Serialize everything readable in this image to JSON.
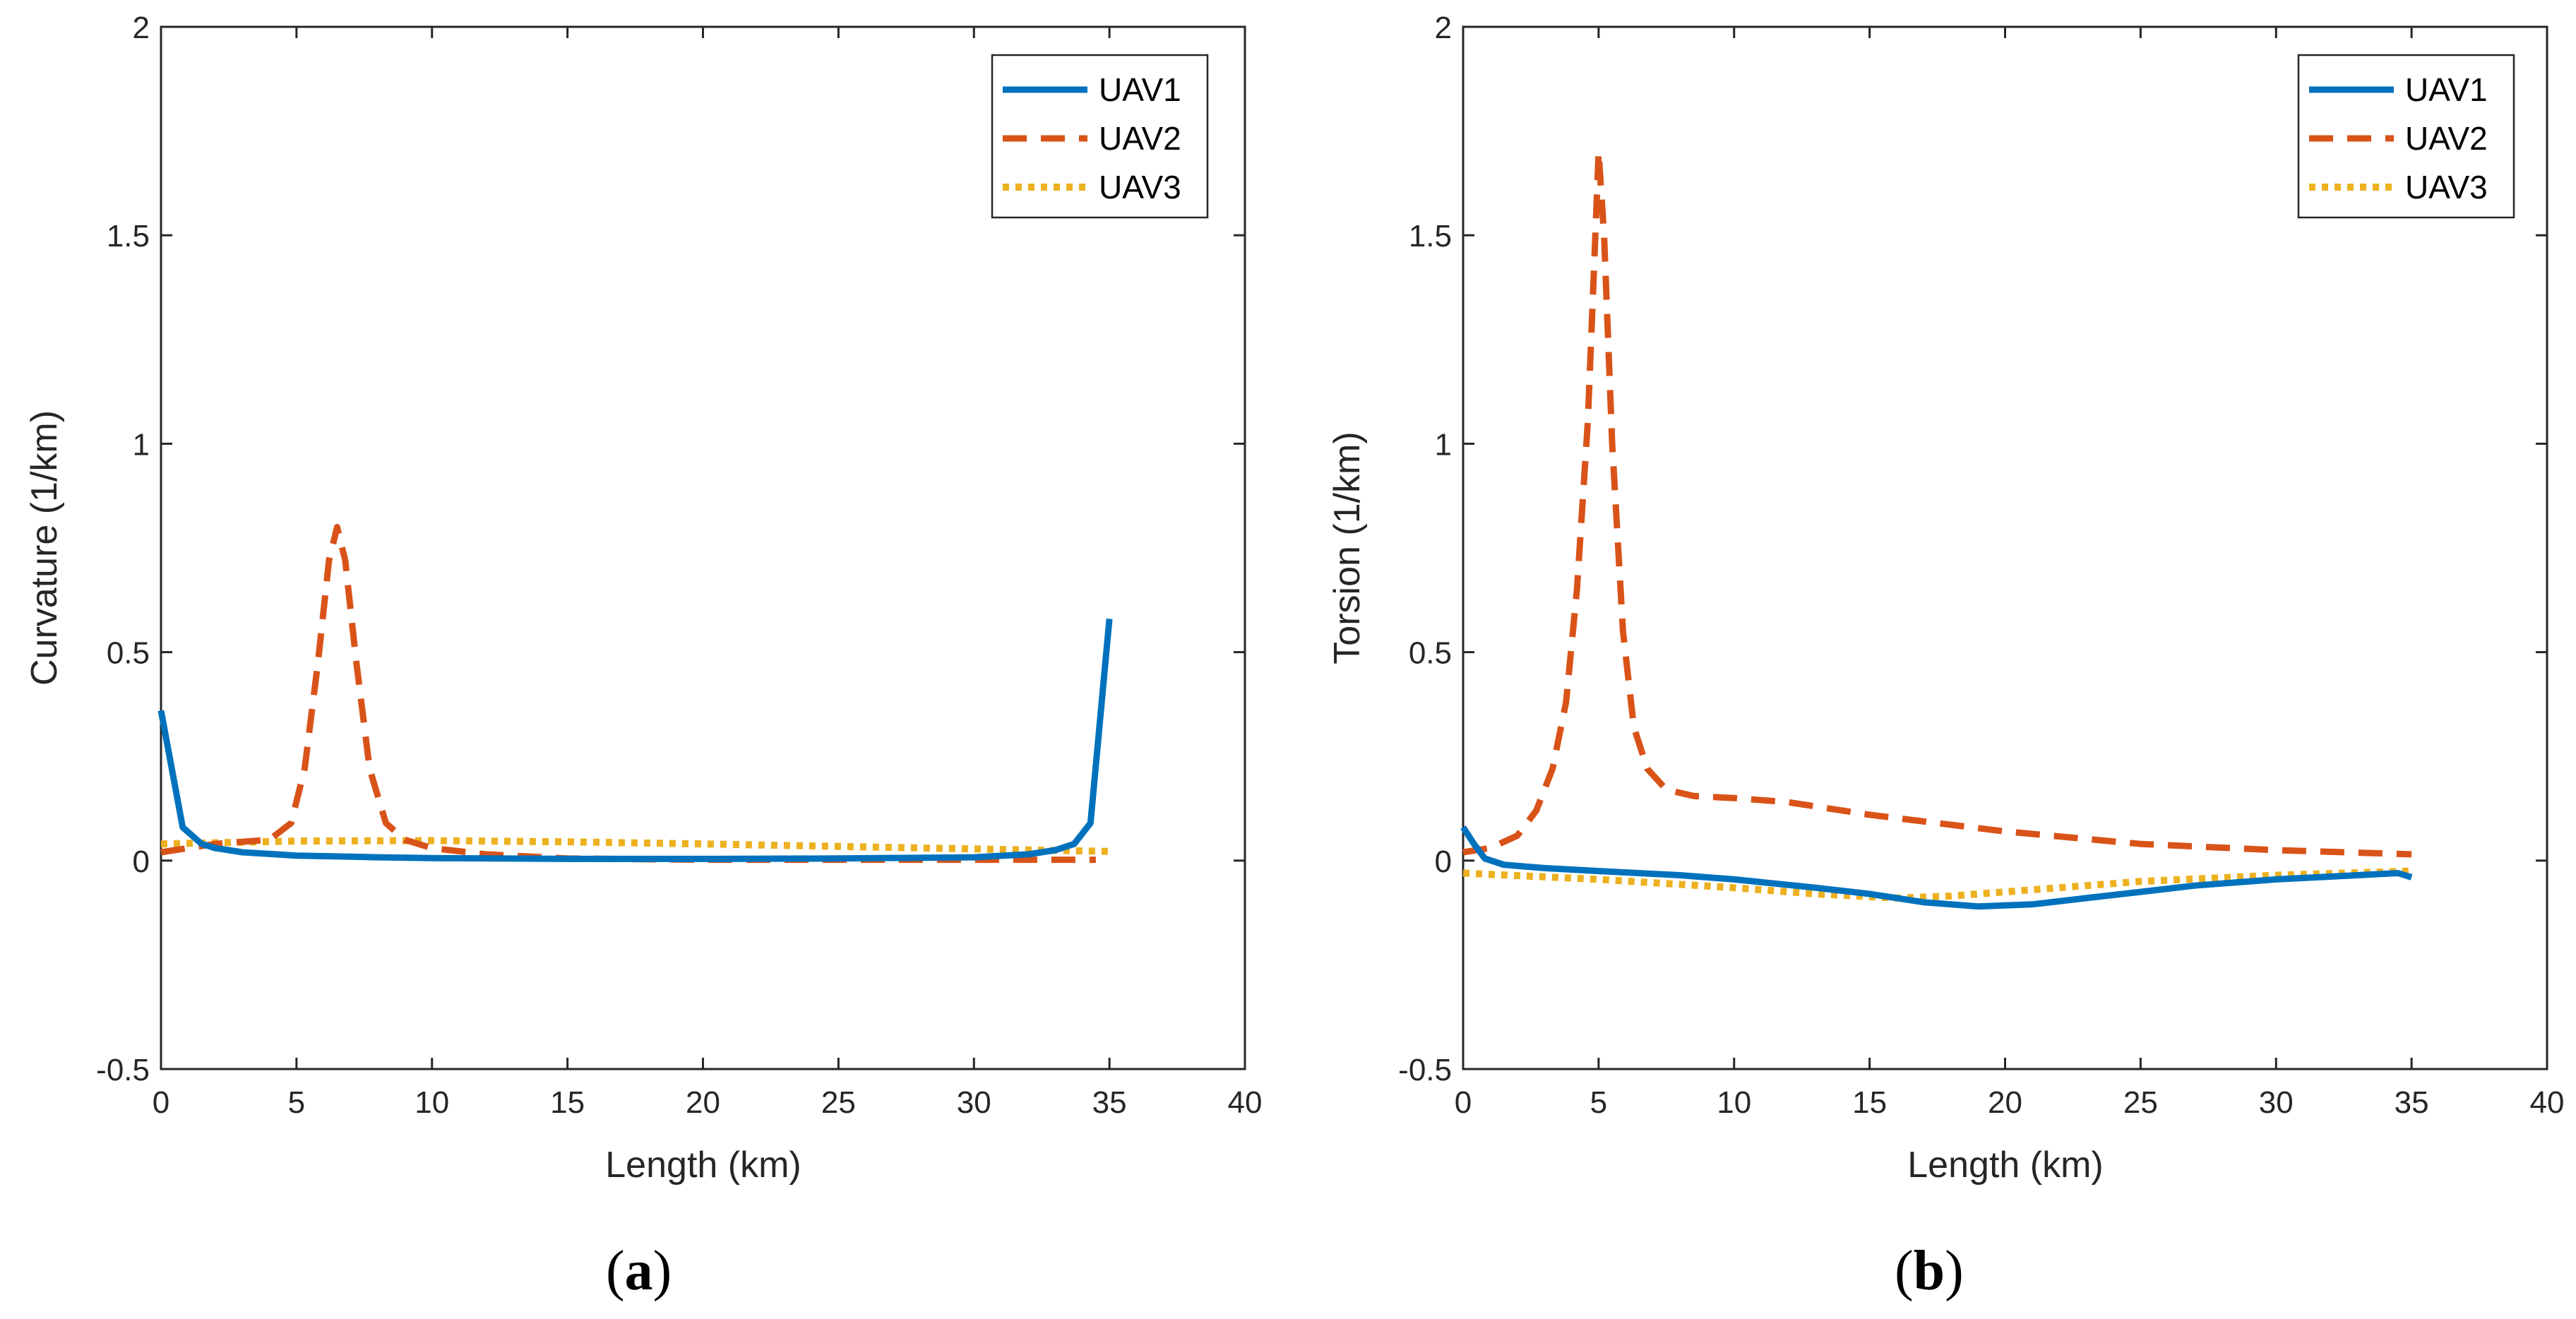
{
  "chart_data": [
    {
      "type": "line",
      "panel_label": "(a)",
      "panel_letter": "a",
      "xlabel": "Length (km)",
      "ylabel": "Curvature (1/km)",
      "xlim": [
        0,
        40
      ],
      "ylim": [
        -0.5,
        2
      ],
      "xticks": [
        0,
        5,
        10,
        15,
        20,
        25,
        30,
        35,
        40
      ],
      "yticks": [
        -0.5,
        0,
        0.5,
        1,
        1.5,
        2
      ],
      "xtick_labels": [
        "0",
        "5",
        "10",
        "15",
        "20",
        "25",
        "30",
        "35",
        "40"
      ],
      "ytick_labels": [
        "-0.5",
        "0",
        "0.5",
        "1",
        "1.5",
        "2"
      ],
      "legend": {
        "location": "top-right",
        "entries": [
          "UAV1",
          "UAV2",
          "UAV3"
        ]
      },
      "series": [
        {
          "name": "UAV1",
          "color": "#0072BD",
          "style": "solid",
          "x": [
            0,
            0.8,
            1.5,
            2,
            3,
            5,
            8,
            10,
            15,
            20,
            25,
            30,
            32,
            33,
            33.7,
            34.3,
            35
          ],
          "y": [
            0.36,
            0.08,
            0.04,
            0.03,
            0.02,
            0.012,
            0.008,
            0.006,
            0.004,
            0.004,
            0.005,
            0.008,
            0.015,
            0.025,
            0.04,
            0.09,
            0.58
          ]
        },
        {
          "name": "UAV2",
          "color": "#D95319",
          "style": "dashed",
          "x": [
            0,
            1,
            2,
            3,
            4,
            4.8,
            5.3,
            5.8,
            6.2,
            6.5,
            6.8,
            7.2,
            7.7,
            8.3,
            9,
            10,
            12,
            15,
            20,
            25,
            30,
            34.5
          ],
          "y": [
            0.02,
            0.03,
            0.04,
            0.045,
            0.05,
            0.09,
            0.22,
            0.48,
            0.72,
            0.8,
            0.72,
            0.48,
            0.22,
            0.09,
            0.05,
            0.03,
            0.015,
            0.005,
            0.002,
            0.002,
            0.002,
            0.002
          ]
        },
        {
          "name": "UAV3",
          "color": "#EDB120",
          "style": "dotted",
          "x": [
            0,
            5,
            10,
            15,
            20,
            25,
            30,
            35
          ],
          "y": [
            0.04,
            0.047,
            0.048,
            0.045,
            0.04,
            0.034,
            0.028,
            0.022
          ]
        }
      ]
    },
    {
      "type": "line",
      "panel_label": "(b)",
      "panel_letter": "b",
      "xlabel": "Length (km)",
      "ylabel": "Torsion (1/km)",
      "xlim": [
        0,
        40
      ],
      "ylim": [
        -0.5,
        2
      ],
      "xticks": [
        0,
        5,
        10,
        15,
        20,
        25,
        30,
        35,
        40
      ],
      "yticks": [
        -0.5,
        0,
        0.5,
        1,
        1.5,
        2
      ],
      "xtick_labels": [
        "0",
        "5",
        "10",
        "15",
        "20",
        "25",
        "30",
        "35",
        "40"
      ],
      "ytick_labels": [
        "-0.5",
        "0",
        "0.5",
        "1",
        "1.5",
        "2"
      ],
      "legend": {
        "location": "top-right",
        "entries": [
          "UAV1",
          "UAV2",
          "UAV3"
        ]
      },
      "series": [
        {
          "name": "UAV1",
          "color": "#0072BD",
          "style": "solid",
          "x": [
            0,
            0.4,
            0.8,
            1.5,
            3,
            5,
            8,
            10,
            13,
            15,
            17,
            19,
            21,
            23,
            25,
            27,
            30,
            33,
            34.5,
            35
          ],
          "y": [
            0.08,
            0.04,
            0.005,
            -0.01,
            -0.018,
            -0.025,
            -0.035,
            -0.045,
            -0.065,
            -0.08,
            -0.1,
            -0.11,
            -0.105,
            -0.09,
            -0.075,
            -0.06,
            -0.045,
            -0.035,
            -0.03,
            -0.04
          ]
        },
        {
          "name": "UAV2",
          "color": "#D95319",
          "style": "dashed",
          "x": [
            0,
            1,
            2,
            2.7,
            3.3,
            3.8,
            4.2,
            4.6,
            4.85,
            5,
            5.2,
            5.5,
            5.9,
            6.3,
            6.8,
            7.5,
            8.5,
            10,
            12,
            15,
            20,
            25,
            30,
            35
          ],
          "y": [
            0.02,
            0.03,
            0.06,
            0.12,
            0.22,
            0.38,
            0.65,
            1.05,
            1.45,
            1.7,
            1.5,
            1.0,
            0.55,
            0.32,
            0.22,
            0.17,
            0.155,
            0.15,
            0.14,
            0.11,
            0.07,
            0.04,
            0.025,
            0.015
          ]
        },
        {
          "name": "UAV3",
          "color": "#EDB120",
          "style": "dotted",
          "x": [
            0,
            5,
            10,
            13,
            16,
            18,
            20,
            25,
            30,
            35
          ],
          "y": [
            -0.03,
            -0.045,
            -0.065,
            -0.08,
            -0.09,
            -0.085,
            -0.075,
            -0.05,
            -0.035,
            -0.025
          ]
        }
      ]
    }
  ]
}
